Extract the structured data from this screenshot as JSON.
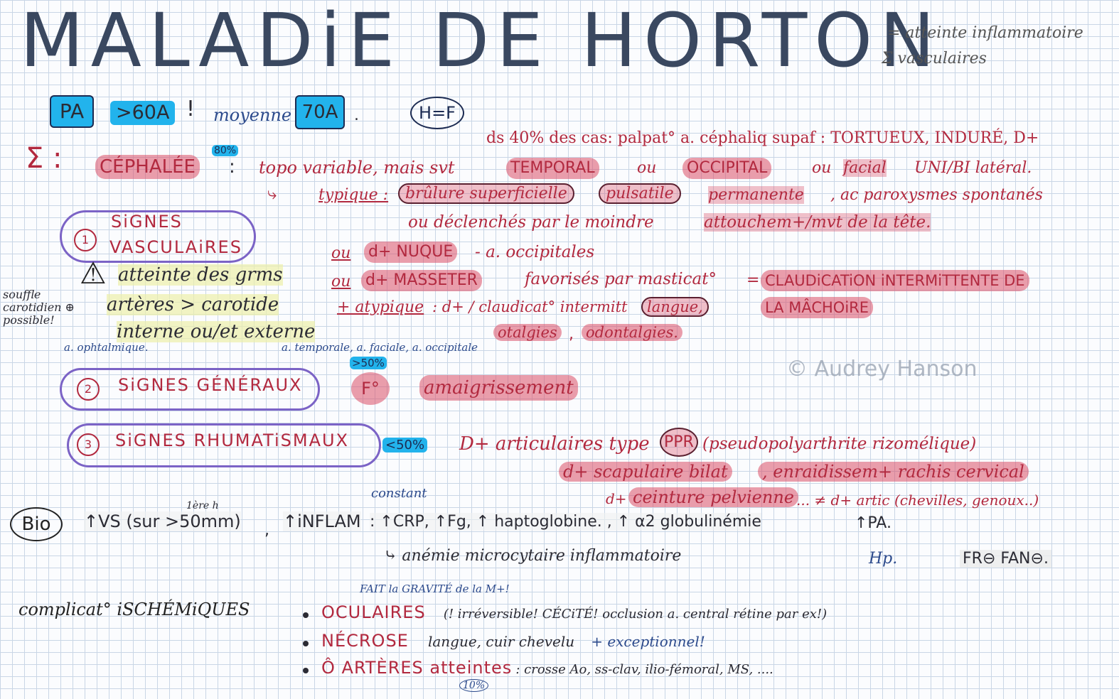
{
  "title": "MALADiE DE HORTON",
  "title_note": [
    "= atteinte inflammatoire",
    "Σ vasculaires"
  ],
  "epidemio": {
    "pa": "PA",
    "age": ">60A",
    "excl": "!",
    "moyenne_label": "moyenne",
    "moyenne_value": "70A",
    "dot": ".",
    "sex": "H=F"
  },
  "cephalee": {
    "sigma": "Σ :",
    "pct": "80%",
    "label": "CÉPHALÉE",
    "colon": ":",
    "top_note": "ds 40% des cas: palpat° a. céphaliq supaf : TORTUEUX, INDURÉ, D+",
    "line1_a": "topo variable, mais svt",
    "temporal": "TEMPORAL",
    "ou1": "ou",
    "occipital": "OCCIPITAL",
    "ou2": "ou",
    "facial": "facial",
    "unibi": "UNI/BI latéral.",
    "line2_arrow": "⤷",
    "typique": "typique :",
    "brulure": "brûlure superficielle",
    "pulsatile": "pulsatile",
    "permanente": "permanente",
    "paroxysmes": ", ac paroxysmes spontanés",
    "line3": "ou déclenchés par le moindre",
    "attouchem": "attouchem+/mvt de la tête."
  },
  "vasc": {
    "num": "1",
    "label1": "SiGNES",
    "label2": "VASCULAiRES",
    "warning": "⚠",
    "atteinte": "atteinte des grms",
    "arteres": "artères > carotide",
    "interne": "interne ou/et externe",
    "souffle": [
      "souffle",
      "carotidien ⊕",
      "possible!"
    ],
    "ophtalmique": "a. ophtalmique.",
    "temporale": "a. temporale, a. faciale, a. occipitale",
    "ou_nuque": "ou",
    "nuque": "d+ NUQUE",
    "occipitales": "- a. occipitales",
    "ou_masseter": "ou",
    "masseter": "d+ MASSETER",
    "favorises": "favorisés par masticat°",
    "eq": "=",
    "claudication1": "CLAUDiCATiON iNTERMiTTENTE DE",
    "claudication2": "LA MÂCHOiRE",
    "atypique": "+ atypique",
    "atyp_text": ": d+ / claudicat° intermitt",
    "langue": "langue,",
    "otalgies": "otalgies",
    "comma": ",",
    "odontalgies": "odontalgies."
  },
  "generaux": {
    "num": "2",
    "label": "SiGNES GÉNÉRAUX",
    "pct": ">50%",
    "fever": "F°",
    "amaig": "amaigrissement"
  },
  "rhumato": {
    "num": "3",
    "label": "SiGNES RHUMATiSMAUX",
    "pct": "<50%",
    "text1": "D+ articulaires type",
    "ppr": "PPR",
    "text2": "(pseudopolyarthrite rizomélique)",
    "scap": "d+ scapulaire bilat",
    "enraid": ", enraidissem+ rachis cervical",
    "ceint_pre": "d+",
    "ceinture": "ceinture pelvienne",
    "autres": "... ≠ d+ artic (chevilles, genoux..)"
  },
  "bio": {
    "label": "Bio",
    "vs_note": "1ère h",
    "vs": "↑VS (sur >50mm)",
    "comma": ",",
    "inflam": "↑iNFLAM",
    "constant": "constant",
    "crp": ": ↑CRP, ↑Fg, ↑ haptoglobine. , ↑ α2 globulinémie",
    "pa": "↑PA.",
    "anemie": "⤷ anémie microcytaire inflammatoire",
    "hp": "Hp.",
    "fr": "FR⊖ FAN⊖."
  },
  "complic": {
    "label": "complicat° iSCHÉMiQUES",
    "gravite": "FAIT la GRAVITÉ de la M+!",
    "items": [
      {
        "title": "OCULAIRES",
        "text": "(! irréversible! CÉCiTÉ! occlusion a. central rétine par ex!)"
      },
      {
        "title": "NÉCROSE",
        "text": "langue, cuir chevelu",
        "extra": "+ exceptionnel!"
      },
      {
        "title": "Ô ARTÈRES atteintes",
        "text": ": crosse Ao, ss-clav, ilio-fémoral, MS, ...."
      }
    ],
    "pct": "10%"
  },
  "watermark": "© Audrey Hanson",
  "colors": {
    "title": "#3a4860",
    "red": "#b2293f",
    "blue_pen": "#2c4a8c",
    "highlight_blue": "#22b3ec",
    "highlight_red": "#da4e66",
    "oval_purple": "#7b63c6"
  }
}
